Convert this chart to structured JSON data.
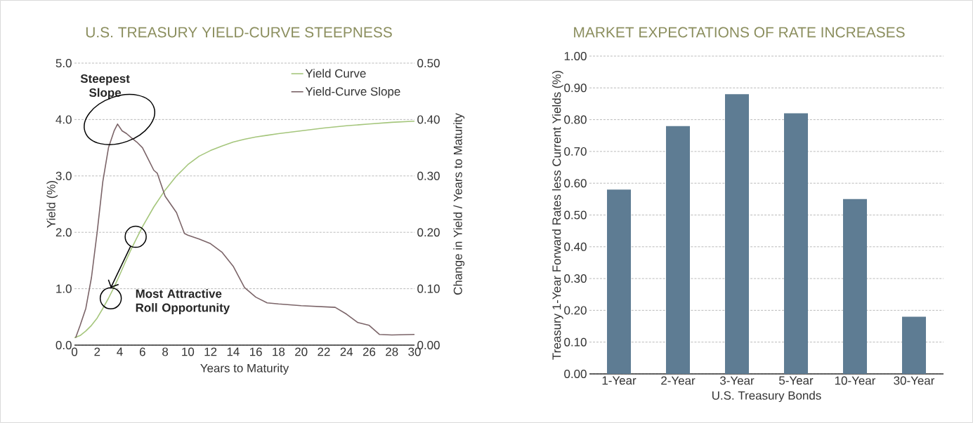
{
  "chart_data": [
    {
      "type": "line",
      "title": "U.S. TREASURY YIELD-CURVE STEEPNESS",
      "xlabel": "Years to Maturity",
      "ylabel": "Yield (%)",
      "y2label": "Change in Yield / Years to Maturity",
      "series": [
        {
          "name": "Yield Curve",
          "color": "#a5c67c",
          "x": [
            0,
            0.5,
            1,
            1.5,
            2,
            2.5,
            3,
            3.5,
            4,
            4.5,
            5,
            5.5,
            6,
            7,
            8,
            9,
            10,
            11,
            12,
            13,
            14,
            15,
            16,
            17,
            18,
            20,
            22,
            24,
            26,
            28,
            30
          ],
          "values": [
            0.13,
            0.17,
            0.25,
            0.35,
            0.48,
            0.65,
            0.83,
            1.03,
            1.25,
            1.48,
            1.7,
            1.9,
            2.1,
            2.45,
            2.75,
            3.0,
            3.2,
            3.35,
            3.45,
            3.53,
            3.6,
            3.65,
            3.69,
            3.72,
            3.75,
            3.8,
            3.85,
            3.89,
            3.92,
            3.95,
            3.97
          ]
        },
        {
          "name": "Yield-Curve Slope",
          "color": "#7b6468",
          "axis": "y2",
          "x": [
            0.1,
            0.5,
            1,
            1.5,
            2,
            2.5,
            3,
            3.5,
            3.8,
            4.2,
            4.6,
            5,
            5.5,
            6,
            6.5,
            7,
            7.3,
            8,
            9,
            9.7,
            10,
            11,
            12,
            13,
            14,
            15,
            16,
            17,
            18,
            20,
            22,
            23,
            24,
            25,
            26,
            26.9,
            28,
            30
          ],
          "values": [
            0.013,
            0.035,
            0.065,
            0.12,
            0.2,
            0.29,
            0.35,
            0.38,
            0.392,
            0.38,
            0.375,
            0.368,
            0.36,
            0.35,
            0.33,
            0.31,
            0.305,
            0.264,
            0.235,
            0.198,
            0.195,
            0.188,
            0.18,
            0.165,
            0.14,
            0.102,
            0.085,
            0.075,
            0.073,
            0.07,
            0.068,
            0.067,
            0.055,
            0.04,
            0.035,
            0.019,
            0.018,
            0.019
          ]
        }
      ],
      "xlim": [
        0,
        30
      ],
      "xticks": [
        0,
        2,
        4,
        6,
        8,
        10,
        12,
        14,
        16,
        18,
        20,
        22,
        24,
        26,
        28,
        30
      ],
      "ylim": [
        0,
        5
      ],
      "yticks": [
        {
          "value": 0,
          "label": "0.0"
        },
        {
          "value": 1,
          "label": "1.0"
        },
        {
          "value": 2,
          "label": "2.0"
        },
        {
          "value": 3,
          "label": "3.0"
        },
        {
          "value": 4,
          "label": "4.0"
        },
        {
          "value": 5,
          "label": "5.0"
        }
      ],
      "y2lim": [
        0,
        0.5
      ],
      "y2ticks": [
        {
          "value": 0,
          "label": "0.00"
        },
        {
          "value": 0.1,
          "label": "0.10"
        },
        {
          "value": 0.2,
          "label": "0.20"
        },
        {
          "value": 0.3,
          "label": "0.30"
        },
        {
          "value": 0.4,
          "label": "0.40"
        },
        {
          "value": 0.5,
          "label": "0.50"
        }
      ],
      "grid": "y",
      "legend": "top right",
      "annotations": [
        "Steepest Slope",
        {
          "text": "Most Attractive Roll Opportunity",
          "x": 3.2,
          "y": 0.83
        }
      ]
    },
    {
      "type": "bar",
      "title": "MARKET EXPECTATIONS OF RATE INCREASES",
      "xlabel": "U.S. Treasury Bonds",
      "ylabel": "Treasury 1-Year Forward Rates less Current Yields (%)",
      "categories": [
        "1-Year",
        "2-Year",
        "3-Year",
        "5-Year",
        "10-Year",
        "30-Year"
      ],
      "values": [
        0.58,
        0.78,
        0.88,
        0.82,
        0.55,
        0.18
      ],
      "color": "#5e7c93",
      "ylim": [
        0,
        1
      ],
      "yticks": [
        {
          "value": 0,
          "label": "0.00"
        },
        {
          "value": 0.1,
          "label": "0.10"
        },
        {
          "value": 0.2,
          "label": "0.20"
        },
        {
          "value": 0.3,
          "label": "0.30"
        },
        {
          "value": 0.4,
          "label": "0.40"
        },
        {
          "value": 0.5,
          "label": "0.50"
        },
        {
          "value": 0.6,
          "label": "0.60"
        },
        {
          "value": 0.7,
          "label": "0.70"
        },
        {
          "value": 0.8,
          "label": "0.80"
        },
        {
          "value": 0.9,
          "label": "0.90"
        },
        {
          "value": 1,
          "label": "1.00"
        }
      ],
      "grid": "y"
    }
  ]
}
